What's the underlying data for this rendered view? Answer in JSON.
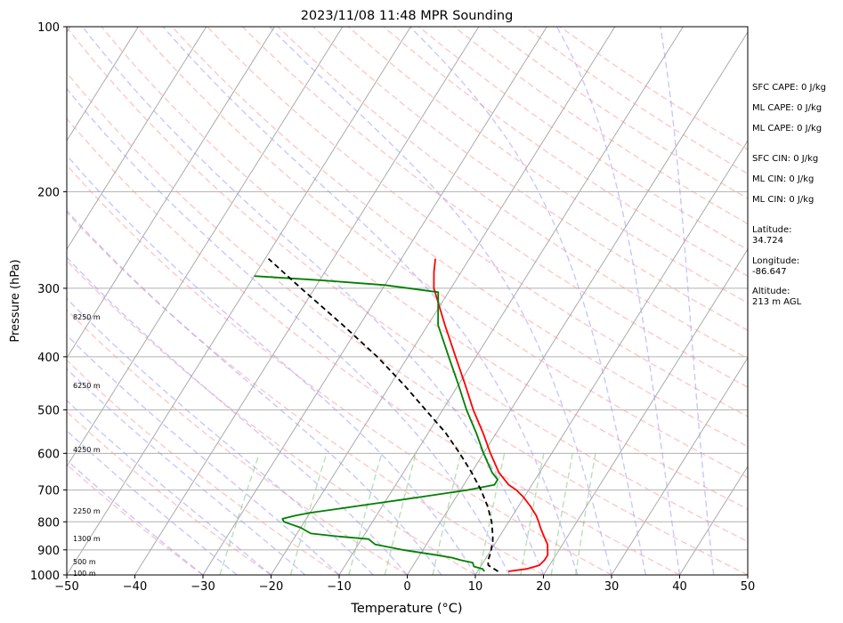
{
  "chart_data": {
    "type": "line",
    "title": "2023/11/08 11:48 MPR Sounding",
    "xlabel": "Temperature (°C)",
    "ylabel": "Pressure (hPa)",
    "xlim": [
      -50,
      50
    ],
    "ylim": [
      1000,
      100
    ],
    "y_scale": "log",
    "skew": true,
    "grid": true,
    "x_ticks": [
      "−50",
      "−40",
      "−30",
      "−20",
      "−10",
      "0",
      "10",
      "20",
      "30",
      "40",
      "50"
    ],
    "y_ticks": [
      "100",
      "200",
      "300",
      "400",
      "500",
      "600",
      "700",
      "800",
      "900",
      "1000"
    ],
    "height_labels": [
      "8250 m",
      "6250 m",
      "4250 m",
      "2250 m",
      "1300 m",
      "500 m",
      "100 m"
    ],
    "colors": {
      "temperature": "#ff0000",
      "dewpoint": "#008000",
      "parcel": "#000000",
      "dry_adiabats": "#ff9999",
      "moist_adiabats": "#9999ff",
      "mixing_ratio": "#88cc88",
      "isotherms": "#aaaaaa"
    },
    "series": [
      {
        "style": "solid red",
        "pressure": [
          985,
          975,
          960,
          940,
          920,
          900,
          880,
          850,
          820,
          800,
          780,
          750,
          720,
          700,
          685,
          650,
          600,
          550,
          500,
          450,
          400,
          350,
          300,
          280,
          265
        ],
        "temperature": [
          14.5,
          17,
          18.5,
          18.8,
          18.8,
          18.3,
          17.8,
          16.5,
          15.2,
          14.4,
          13.5,
          11.8,
          9.8,
          8.2,
          6.6,
          4.0,
          1.0,
          -2.0,
          -5.5,
          -9.0,
          -13.0,
          -17.5,
          -22.5,
          -24.0,
          -25.0
        ]
      },
      {
        "style": "solid green",
        "pressure": [
          985,
          975,
          965,
          950,
          940,
          930,
          920,
          900,
          880,
          860,
          850,
          840,
          820,
          800,
          790,
          780,
          770,
          760,
          750,
          740,
          730,
          720,
          710,
          700,
          685,
          670,
          650,
          600,
          550,
          500,
          450,
          400,
          350,
          305,
          296,
          290,
          285
        ],
        "temperature": [
          11,
          10.5,
          9,
          8.5,
          6.5,
          5,
          2.5,
          -3,
          -7.5,
          -9,
          -14,
          -18,
          -20,
          -23,
          -23.5,
          -22,
          -20,
          -17,
          -14,
          -11,
          -8,
          -5,
          -2,
          1,
          4.5,
          4.5,
          3.0,
          0.0,
          -3.0,
          -6.5,
          -10.0,
          -14.0,
          -18.5,
          -21.5,
          -30.0,
          -40.0,
          -50.0
        ]
      },
      {
        "style": "dashed black",
        "pressure": [
          985,
          960,
          940,
          920,
          900,
          870,
          850,
          800,
          750,
          700,
          650,
          600,
          550,
          500,
          450,
          400,
          350,
          300,
          265
        ],
        "temperature": [
          13,
          11,
          10.5,
          10.3,
          10,
          9.5,
          9.0,
          7.5,
          5.5,
          3.0,
          0.0,
          -3.5,
          -7.5,
          -12.5,
          -18.0,
          -24.5,
          -32.5,
          -42.0,
          -49.5
        ]
      }
    ]
  },
  "info": {
    "sfc_cape": "SFC CAPE: 0 J/kg",
    "ml_cape_1": "ML CAPE: 0 J/kg",
    "ml_cape_2": "ML CAPE: 0 J/kg",
    "sfc_cin": "SFC CIN: 0 J/kg",
    "ml_cin_1": "ML CIN: 0 J/kg",
    "ml_cin_2": "ML CIN: 0 J/kg",
    "latitude": "Latitude:\n34.724",
    "longitude": "Longitude:\n-86.647",
    "altitude": "Altitude:\n213 m AGL"
  }
}
